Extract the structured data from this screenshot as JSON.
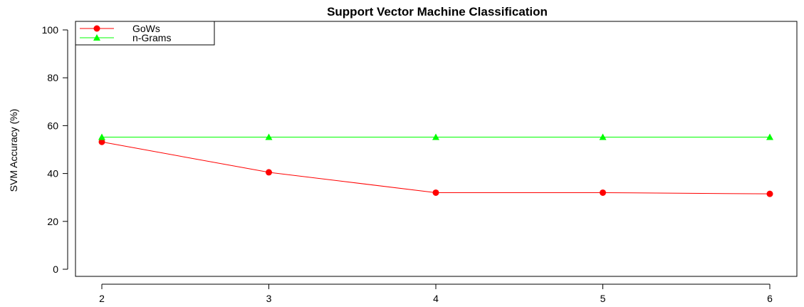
{
  "chart_data": {
    "type": "line",
    "title": "Support Vector Machine Classification",
    "xlabel": "",
    "ylabel": "SVM Accuracy (%)",
    "x": [
      2,
      3,
      4,
      5,
      6
    ],
    "xlim": [
      2,
      6
    ],
    "ylim": [
      0,
      100
    ],
    "yticks": [
      0,
      20,
      40,
      60,
      80,
      100
    ],
    "grid": false,
    "legend_position": "top-left",
    "series": [
      {
        "name": "GoWs",
        "values": [
          53.2,
          40.5,
          32.0,
          32.0,
          31.5
        ],
        "color": "#ff0000",
        "marker": "circle"
      },
      {
        "name": "n-Grams",
        "values": [
          55.2,
          55.2,
          55.2,
          55.2,
          55.2
        ],
        "color": "#00ff00",
        "marker": "triangle"
      }
    ]
  }
}
